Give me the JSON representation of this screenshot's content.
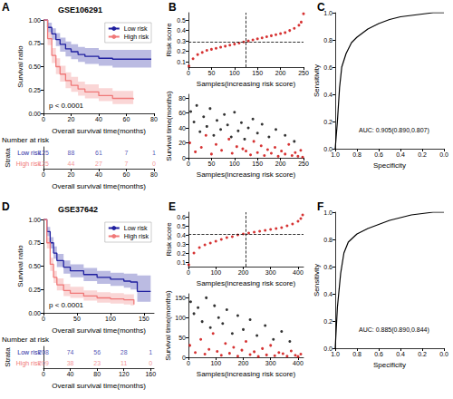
{
  "chart_data": [
    {
      "type": "km",
      "panel": "A",
      "title": "GSE106291",
      "xlabel": "Overall survival time(months)",
      "ylabel": "Survival ratio",
      "xlim": [
        0,
        80
      ],
      "xticks": [
        0,
        20,
        40,
        60,
        80
      ],
      "ylim": [
        0,
        1
      ],
      "yticks": [
        {
          "value": 0,
          "label": "0.00"
        },
        0.25,
        {
          "value": 0.5,
          "label": "0.50"
        },
        0.75,
        {
          "value": 1,
          "label": "1.00"
        }
      ],
      "annotation": "p < 0.0001",
      "legend": "upper right",
      "series": [
        {
          "name": "Low risk",
          "color": "#1f1f9f",
          "x": [
            0,
            3,
            6,
            9,
            12,
            16,
            20,
            25,
            30,
            40,
            50,
            78
          ],
          "values": [
            1,
            0.92,
            0.85,
            0.79,
            0.74,
            0.69,
            0.66,
            0.63,
            0.61,
            0.59,
            0.58,
            0.58
          ],
          "ci_lower": [
            1,
            0.87,
            0.79,
            0.72,
            0.66,
            0.61,
            0.58,
            0.55,
            0.53,
            0.51,
            0.49,
            0.48
          ],
          "ci_upper": [
            1,
            0.97,
            0.91,
            0.86,
            0.81,
            0.77,
            0.74,
            0.71,
            0.7,
            0.68,
            0.68,
            0.68
          ],
          "at_risk": [
            125,
            88,
            61,
            7,
            1
          ]
        },
        {
          "name": "High risk",
          "color": "#f07878",
          "x": [
            0,
            3,
            6,
            9,
            12,
            16,
            20,
            25,
            30,
            40,
            50,
            65
          ],
          "values": [
            1,
            0.8,
            0.62,
            0.5,
            0.42,
            0.35,
            0.3,
            0.26,
            0.23,
            0.19,
            0.16,
            0.15
          ],
          "ci_lower": [
            1,
            0.73,
            0.54,
            0.42,
            0.34,
            0.27,
            0.23,
            0.19,
            0.16,
            0.13,
            0.1,
            0.08
          ],
          "ci_upper": [
            1,
            0.87,
            0.7,
            0.59,
            0.51,
            0.44,
            0.39,
            0.34,
            0.31,
            0.27,
            0.24,
            0.24
          ],
          "at_risk": [
            125,
            44,
            27,
            7,
            0
          ]
        }
      ],
      "risk_table": {
        "title": "Number at risk",
        "ylabel": "Strata",
        "xlabel": "Overall survival time(months)",
        "x": [
          0,
          20,
          40,
          60,
          80
        ]
      }
    },
    {
      "type": "scatter",
      "panel": "B",
      "xlabel": "Samples(increasing risk score)",
      "ylabel": "Risk score",
      "xlim": [
        0,
        250
      ],
      "xticks": [
        0,
        50,
        100,
        150,
        200,
        250
      ],
      "ylim": [
        0.05,
        0.57
      ],
      "yticks": [
        0.1,
        0.2,
        0.3,
        0.4,
        0.5
      ],
      "cutoff_x": 125,
      "cutoff_y": 0.295,
      "series": [
        {
          "color": "#cc0000",
          "marker": "circle",
          "x": [
            1,
            10,
            20,
            30,
            40,
            50,
            60,
            70,
            80,
            90,
            100,
            110,
            120,
            130,
            140,
            150,
            160,
            170,
            180,
            190,
            200,
            210,
            220,
            230,
            240,
            245,
            250
          ],
          "values": [
            0.06,
            0.13,
            0.17,
            0.19,
            0.21,
            0.22,
            0.23,
            0.24,
            0.25,
            0.26,
            0.27,
            0.28,
            0.29,
            0.3,
            0.31,
            0.32,
            0.33,
            0.34,
            0.35,
            0.36,
            0.37,
            0.38,
            0.4,
            0.42,
            0.45,
            0.48,
            0.56
          ]
        }
      ]
    },
    {
      "type": "scatter",
      "xlabel": "Samples(increasing risk score)",
      "ylabel": "Survival time(months)",
      "xlim": [
        0,
        250
      ],
      "xticks": [
        0,
        50,
        100,
        150,
        200,
        250
      ],
      "ylim": [
        0,
        85
      ],
      "yticks": [
        0,
        20,
        40,
        60,
        80
      ],
      "series": [
        {
          "color": "#000000",
          "marker": "circle",
          "x": [
            5,
            12,
            18,
            25,
            33,
            40,
            47,
            55,
            62,
            70,
            78,
            85,
            93,
            100,
            108,
            115,
            122,
            130,
            140,
            150,
            160,
            175,
            190,
            210,
            230
          ],
          "values": [
            62,
            48,
            70,
            35,
            55,
            42,
            66,
            30,
            50,
            38,
            58,
            44,
            28,
            61,
            36,
            47,
            25,
            40,
            52,
            33,
            45,
            28,
            38,
            30,
            22
          ]
        },
        {
          "color": "#cc0000",
          "marker": "circle",
          "x": [
            3,
            15,
            28,
            38,
            50,
            60,
            72,
            88,
            95,
            105,
            118,
            125,
            135,
            142,
            150,
            158,
            165,
            172,
            180,
            188,
            195,
            202,
            210,
            218,
            225,
            232,
            238,
            244,
            248
          ],
          "values": [
            20,
            8,
            14,
            30,
            5,
            18,
            10,
            25,
            6,
            15,
            12,
            9,
            4,
            22,
            7,
            16,
            3,
            11,
            6,
            14,
            2,
            9,
            5,
            18,
            3,
            7,
            2,
            10,
            1
          ]
        }
      ]
    },
    {
      "type": "line",
      "panel": "C",
      "xlabel": "Specificity",
      "ylabel": "Sensitivity",
      "xlim": [
        1,
        0
      ],
      "xticks": [
        {
          "value": 1,
          "label": "1.0"
        },
        0.8,
        0.6,
        0.4,
        0.2,
        {
          "value": 0,
          "label": "0.0"
        }
      ],
      "ylim": [
        0,
        1
      ],
      "yticks": [
        {
          "value": 0,
          "label": "0.0"
        },
        0.2,
        0.4,
        0.6,
        0.8,
        {
          "value": 1,
          "label": "1.0"
        }
      ],
      "annotation": "AUC: 0.905(0.890,0.807)",
      "series": [
        {
          "color": "#000000",
          "x": [
            1,
            0.98,
            0.96,
            0.94,
            0.9,
            0.85,
            0.8,
            0.7,
            0.6,
            0.5,
            0.4,
            0.3,
            0.2,
            0.1,
            0
          ],
          "values": [
            0,
            0.2,
            0.45,
            0.6,
            0.7,
            0.78,
            0.82,
            0.88,
            0.92,
            0.95,
            0.97,
            0.98,
            0.99,
            1,
            1
          ]
        }
      ]
    },
    {
      "type": "km",
      "panel": "D",
      "title": "GSE37642",
      "xlabel": "Overall survival time(months)",
      "ylabel": "Survival ratio",
      "xlim": [
        0,
        165
      ],
      "xticks": [
        0,
        50,
        100,
        150
      ],
      "ylim": [
        0,
        1
      ],
      "yticks": [
        {
          "value": 0,
          "label": "0.00"
        },
        0.25,
        {
          "value": 0.5,
          "label": "0.50"
        },
        0.75,
        {
          "value": 1,
          "label": "1.00"
        }
      ],
      "annotation": "p < 0.0001",
      "legend": "upper right",
      "series": [
        {
          "name": "Low risk",
          "color": "#1f1f9f",
          "x": [
            0,
            5,
            10,
            15,
            20,
            30,
            40,
            60,
            80,
            100,
            120,
            130,
            140,
            160
          ],
          "values": [
            1,
            0.87,
            0.75,
            0.64,
            0.56,
            0.49,
            0.45,
            0.41,
            0.38,
            0.36,
            0.34,
            0.33,
            0.23,
            0.23
          ],
          "ci_lower": [
            1,
            0.82,
            0.69,
            0.58,
            0.49,
            0.42,
            0.38,
            0.34,
            0.31,
            0.29,
            0.27,
            0.25,
            0.12,
            0.12
          ],
          "ci_upper": [
            1,
            0.92,
            0.81,
            0.71,
            0.63,
            0.56,
            0.52,
            0.48,
            0.45,
            0.43,
            0.42,
            0.42,
            0.4,
            0.4
          ],
          "at_risk": [
            208,
            74,
            56,
            28,
            1
          ]
        },
        {
          "name": "High risk",
          "color": "#f07878",
          "x": [
            0,
            5,
            10,
            15,
            20,
            30,
            40,
            60,
            80,
            100,
            120,
            130,
            135
          ],
          "values": [
            1,
            0.75,
            0.52,
            0.38,
            0.3,
            0.24,
            0.21,
            0.18,
            0.16,
            0.15,
            0.14,
            0.14,
            0.09
          ],
          "ci_lower": [
            1,
            0.69,
            0.45,
            0.32,
            0.24,
            0.18,
            0.16,
            0.13,
            0.11,
            0.1,
            0.09,
            0.08,
            0.03
          ],
          "ci_upper": [
            1,
            0.81,
            0.59,
            0.45,
            0.37,
            0.31,
            0.28,
            0.24,
            0.22,
            0.21,
            0.2,
            0.2,
            0.2
          ],
          "at_risk": [
            209,
            38,
            23,
            11,
            0
          ]
        }
      ],
      "risk_table": {
        "title": "Number at risk",
        "ylabel": "Strata",
        "xlabel": "Overall survival time(months)",
        "x": [
          0,
          40,
          80,
          120,
          160
        ]
      }
    },
    {
      "type": "scatter",
      "panel": "E",
      "xlabel": "Samples(increasing risk score)",
      "ylabel": "Risk score",
      "xlim": [
        0,
        420
      ],
      "xticks": [
        0,
        100,
        200,
        300,
        400
      ],
      "ylim": [
        0.05,
        0.65
      ],
      "yticks": [
        0.1,
        0.2,
        0.3,
        0.4,
        0.5,
        0.6
      ],
      "cutoff_x": 208,
      "cutoff_y": 0.415,
      "series": [
        {
          "color": "#cc0000",
          "marker": "circle",
          "x": [
            1,
            20,
            40,
            60,
            80,
            100,
            120,
            140,
            160,
            180,
            200,
            220,
            240,
            260,
            280,
            300,
            320,
            340,
            360,
            380,
            400,
            410,
            417
          ],
          "values": [
            0.07,
            0.2,
            0.26,
            0.29,
            0.31,
            0.33,
            0.35,
            0.37,
            0.38,
            0.4,
            0.41,
            0.42,
            0.43,
            0.44,
            0.45,
            0.46,
            0.47,
            0.48,
            0.5,
            0.52,
            0.55,
            0.58,
            0.62
          ]
        }
      ]
    },
    {
      "type": "scatter",
      "xlabel": "Samples(increasing risk score)",
      "ylabel": "Survival time(months)",
      "xlim": [
        0,
        420
      ],
      "xticks": [
        0,
        100,
        200,
        300,
        400
      ],
      "ylim": [
        0,
        160
      ],
      "yticks": [
        0,
        50,
        100,
        150
      ],
      "series": [
        {
          "color": "#000000",
          "marker": "circle",
          "x": [
            8,
            20,
            35,
            50,
            65,
            80,
            95,
            110,
            125,
            140,
            160,
            180,
            200,
            225,
            250,
            280,
            310,
            340,
            370
          ],
          "values": [
            140,
            110,
            125,
            90,
            150,
            75,
            130,
            100,
            85,
            120,
            60,
            105,
            70,
            95,
            55,
            80,
            45,
            65,
            40
          ]
        },
        {
          "color": "#cc0000",
          "marker": "circle",
          "x": [
            5,
            25,
            45,
            60,
            75,
            90,
            105,
            120,
            135,
            150,
            165,
            180,
            195,
            210,
            225,
            240,
            255,
            270,
            285,
            300,
            315,
            330,
            345,
            360,
            375,
            390,
            400,
            410
          ],
          "values": [
            30,
            12,
            45,
            8,
            20,
            60,
            15,
            5,
            35,
            10,
            25,
            3,
            18,
            40,
            7,
            14,
            2,
            22,
            6,
            30,
            4,
            12,
            9,
            3,
            16,
            5,
            2,
            8
          ]
        }
      ]
    },
    {
      "type": "line",
      "panel": "F",
      "xlabel": "Specificity",
      "ylabel": "Sensitivity",
      "xlim": [
        1,
        0
      ],
      "xticks": [
        {
          "value": 1,
          "label": "1.0"
        },
        0.8,
        0.6,
        0.4,
        0.2,
        {
          "value": 0,
          "label": "0.0"
        }
      ],
      "ylim": [
        0,
        1
      ],
      "yticks": [
        {
          "value": 0,
          "label": "0.0"
        },
        0.2,
        0.4,
        0.6,
        0.8,
        {
          "value": 1,
          "label": "1.0"
        }
      ],
      "annotation": "AUC: 0.885(0.890,0.844)",
      "series": [
        {
          "color": "#000000",
          "x": [
            1,
            0.98,
            0.95,
            0.92,
            0.88,
            0.8,
            0.7,
            0.6,
            0.5,
            0.4,
            0.3,
            0.2,
            0.1,
            0
          ],
          "values": [
            0,
            0.3,
            0.55,
            0.7,
            0.78,
            0.84,
            0.88,
            0.91,
            0.94,
            0.96,
            0.98,
            0.99,
            1,
            1
          ]
        }
      ]
    }
  ]
}
